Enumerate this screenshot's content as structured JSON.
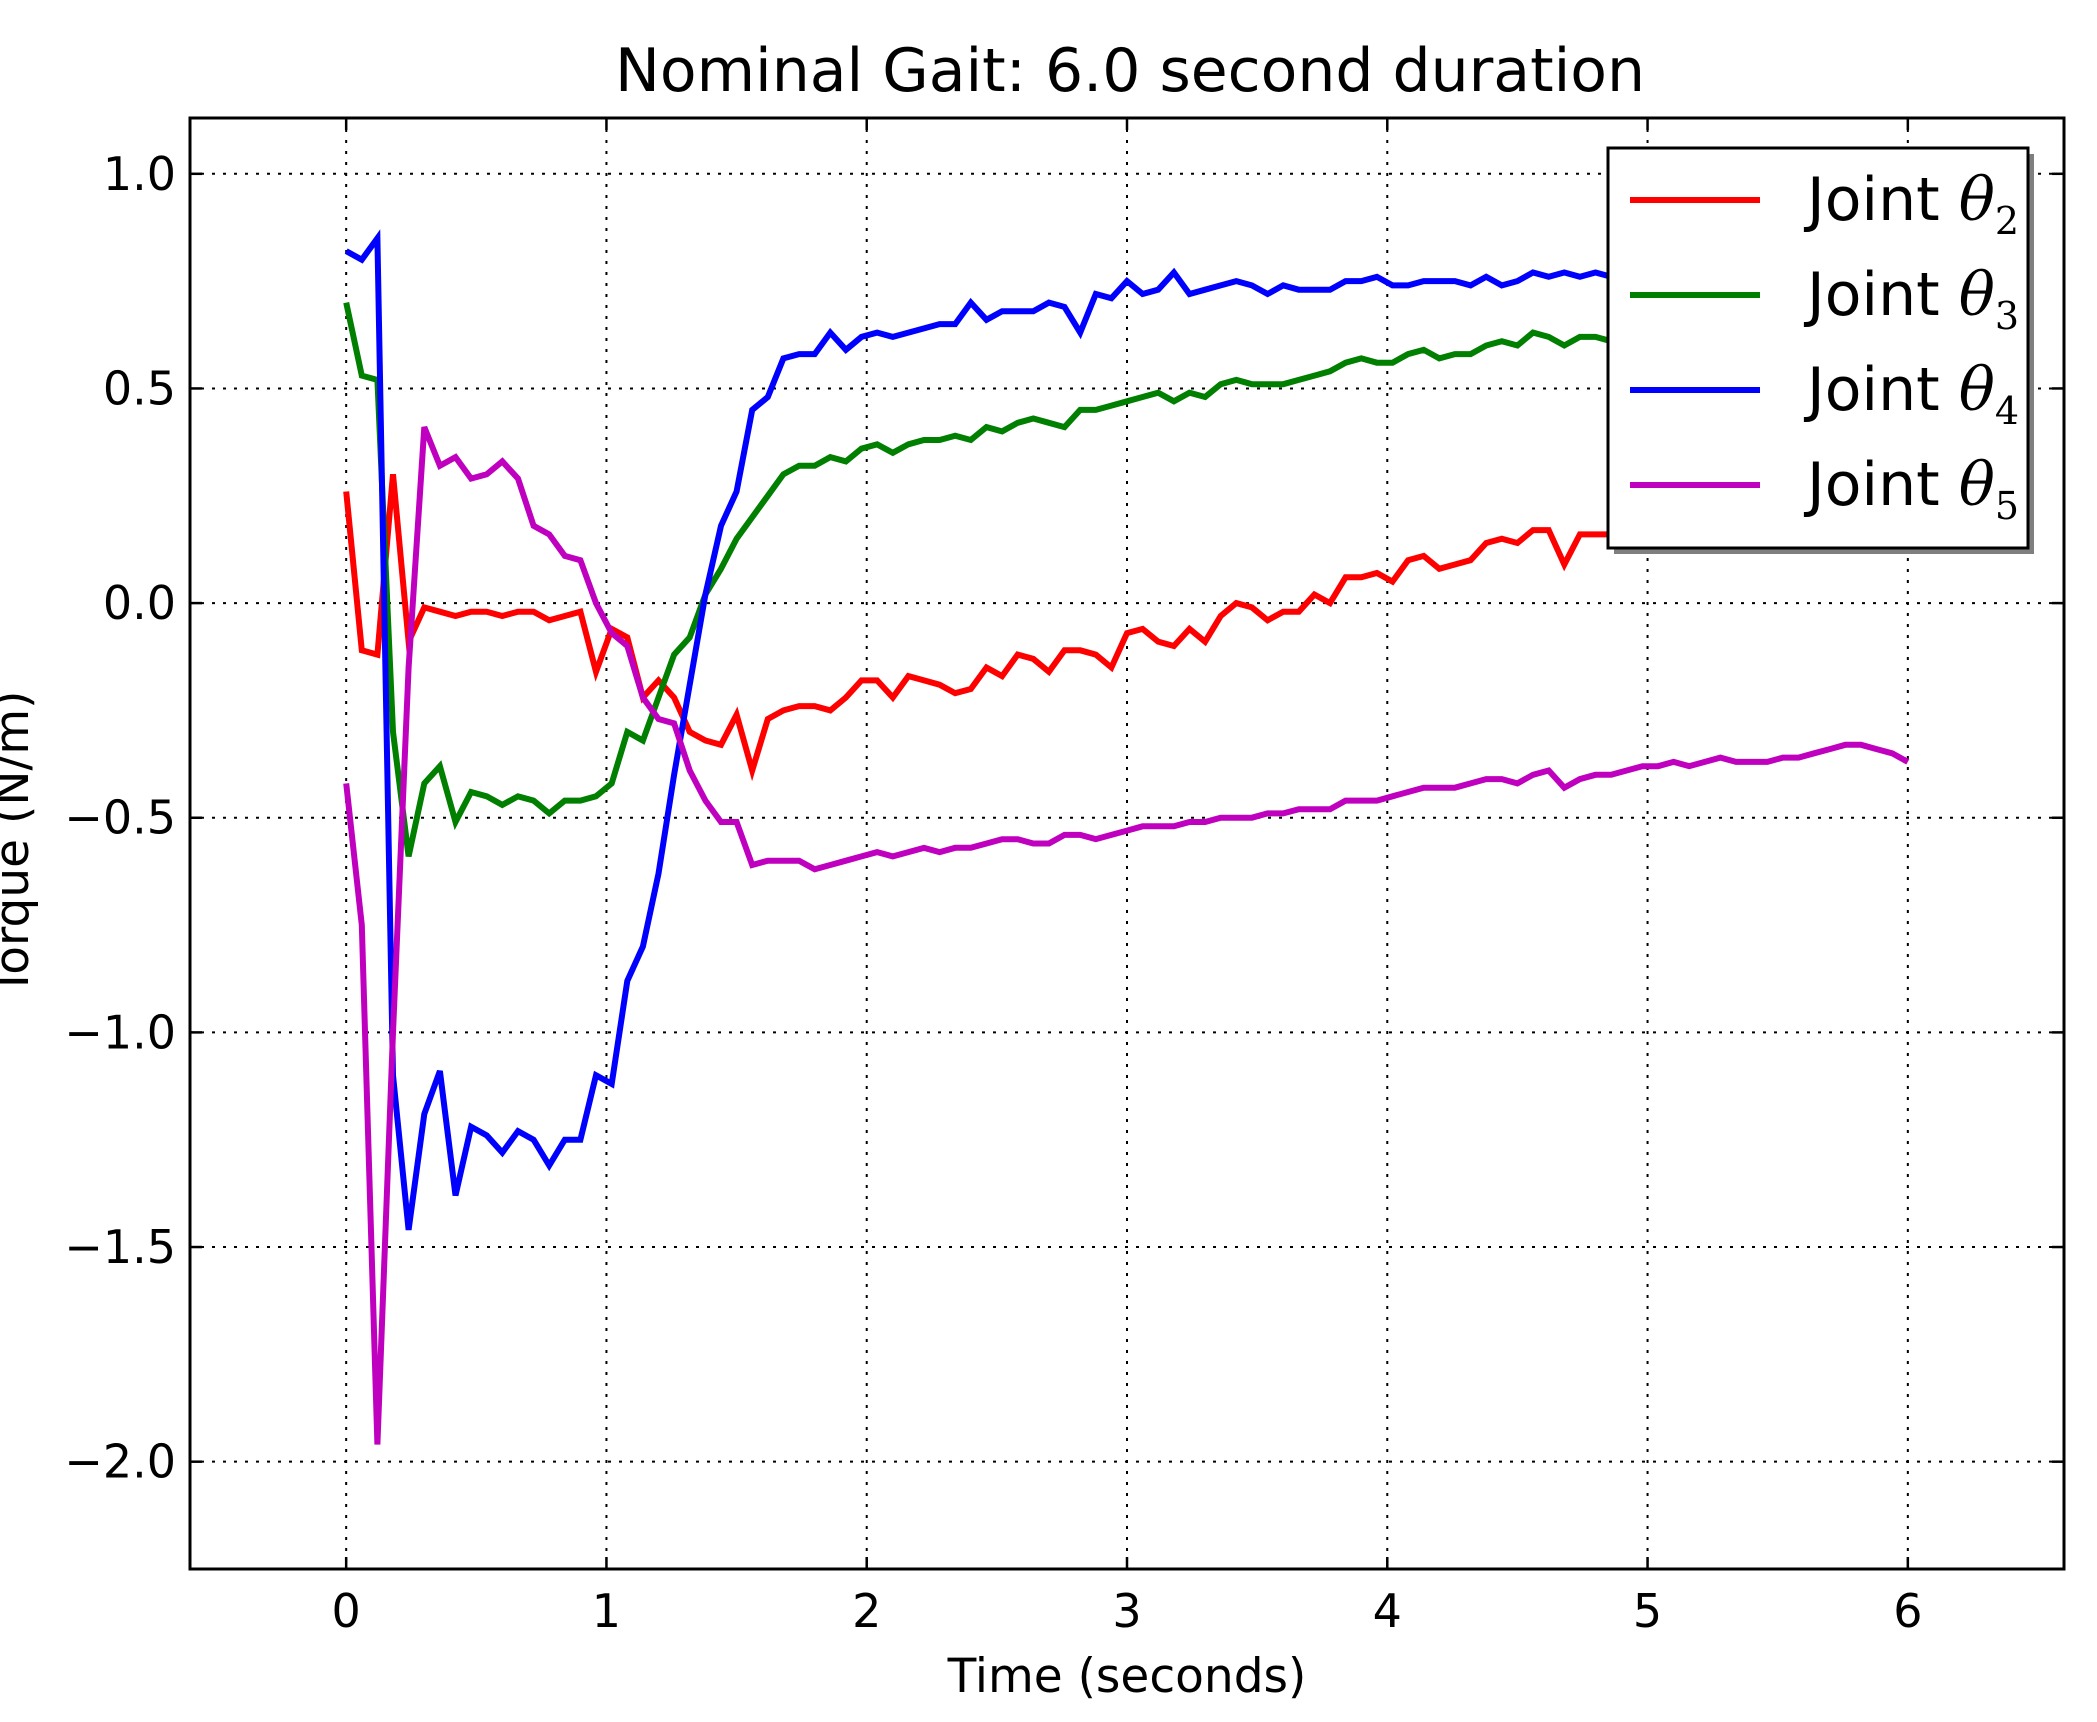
{
  "chart_data": {
    "type": "line",
    "title": "Nominal Gait: 6.0 second duration",
    "xlabel": "Time (seconds)",
    "ylabel": "Torque (N/m)",
    "xlim": [
      -0.6,
      6.6
    ],
    "ylim": [
      -2.25,
      1.13
    ],
    "xticks": [
      0,
      1,
      2,
      3,
      4,
      5,
      6
    ],
    "xtick_labels": [
      "0",
      "1",
      "2",
      "3",
      "4",
      "5",
      "6"
    ],
    "yticks": [
      1.0,
      0.5,
      0.0,
      -0.5,
      -1.0,
      -1.5,
      -2.0
    ],
    "ytick_labels": [
      "1.0",
      "0.5",
      "0.0",
      "−0.5",
      "−1.0",
      "−1.5",
      "−2.0"
    ],
    "grid": true,
    "legend_position": "upper-right",
    "x": [
      0.0,
      0.06,
      0.12,
      0.18,
      0.24,
      0.3,
      0.36,
      0.42,
      0.48,
      0.54,
      0.6,
      0.66,
      0.72,
      0.78,
      0.84,
      0.9,
      0.96,
      1.02,
      1.08,
      1.14,
      1.2,
      1.26,
      1.32,
      1.38,
      1.44,
      1.5,
      1.56,
      1.62,
      1.68,
      1.74,
      1.8,
      1.86,
      1.92,
      1.98,
      2.04,
      2.1,
      2.16,
      2.22,
      2.28,
      2.34,
      2.4,
      2.46,
      2.52,
      2.58,
      2.64,
      2.7,
      2.76,
      2.82,
      2.88,
      2.94,
      3.0,
      3.06,
      3.12,
      3.18,
      3.24,
      3.3,
      3.36,
      3.42,
      3.48,
      3.54,
      3.6,
      3.66,
      3.72,
      3.78,
      3.84,
      3.9,
      3.96,
      4.02,
      4.08,
      4.14,
      4.2,
      4.26,
      4.32,
      4.38,
      4.44,
      4.5,
      4.56,
      4.62,
      4.68,
      4.74,
      4.8,
      4.86,
      4.92,
      4.98,
      5.04,
      5.1,
      5.16,
      5.22,
      5.28,
      5.34,
      5.4,
      5.46,
      5.52,
      5.58,
      5.64,
      5.7,
      5.76,
      5.82,
      5.88,
      5.94,
      6.0
    ],
    "series": [
      {
        "name": "Joint θ2",
        "label_base": "Joint ",
        "label_symbol": "θ",
        "label_sub": "2",
        "color": "#ff0000",
        "values": [
          0.26,
          -0.11,
          -0.12,
          0.3,
          -0.09,
          -0.01,
          -0.02,
          -0.03,
          -0.02,
          -0.02,
          -0.03,
          -0.02,
          -0.02,
          -0.04,
          -0.03,
          -0.02,
          -0.16,
          -0.06,
          -0.08,
          -0.22,
          -0.18,
          -0.22,
          -0.3,
          -0.32,
          -0.33,
          -0.26,
          -0.39,
          -0.27,
          -0.25,
          -0.24,
          -0.24,
          -0.25,
          -0.22,
          -0.18,
          -0.18,
          -0.22,
          -0.17,
          -0.18,
          -0.19,
          -0.21,
          -0.2,
          -0.15,
          -0.17,
          -0.12,
          -0.13,
          -0.16,
          -0.11,
          -0.11,
          -0.12,
          -0.15,
          -0.07,
          -0.06,
          -0.09,
          -0.1,
          -0.06,
          -0.09,
          -0.03,
          0.0,
          -0.01,
          -0.04,
          -0.02,
          -0.02,
          0.02,
          0.0,
          0.06,
          0.06,
          0.07,
          0.05,
          0.1,
          0.11,
          0.08,
          0.09,
          0.1,
          0.14,
          0.15,
          0.14,
          0.17,
          0.17,
          0.09,
          0.16,
          0.16,
          0.16,
          0.17,
          0.17,
          0.18,
          0.19,
          0.2,
          0.2,
          0.21,
          0.22,
          0.22,
          0.23,
          0.23,
          0.24,
          0.24,
          0.25,
          0.25,
          0.25,
          0.26,
          0.26,
          0.26
        ]
      },
      {
        "name": "Joint θ3",
        "label_base": "Joint ",
        "label_symbol": "θ",
        "label_sub": "3",
        "color": "#007f00",
        "values": [
          0.7,
          0.53,
          0.52,
          -0.3,
          -0.59,
          -0.42,
          -0.38,
          -0.51,
          -0.44,
          -0.45,
          -0.47,
          -0.45,
          -0.46,
          -0.49,
          -0.46,
          -0.46,
          -0.45,
          -0.42,
          -0.3,
          -0.32,
          -0.22,
          -0.12,
          -0.08,
          0.02,
          0.08,
          0.15,
          0.2,
          0.25,
          0.3,
          0.32,
          0.32,
          0.34,
          0.33,
          0.36,
          0.37,
          0.35,
          0.37,
          0.38,
          0.38,
          0.39,
          0.38,
          0.41,
          0.4,
          0.42,
          0.43,
          0.42,
          0.41,
          0.45,
          0.45,
          0.46,
          0.47,
          0.48,
          0.49,
          0.47,
          0.49,
          0.48,
          0.51,
          0.52,
          0.51,
          0.51,
          0.51,
          0.52,
          0.53,
          0.54,
          0.56,
          0.57,
          0.56,
          0.56,
          0.58,
          0.59,
          0.57,
          0.58,
          0.58,
          0.6,
          0.61,
          0.6,
          0.63,
          0.62,
          0.6,
          0.62,
          0.62,
          0.61,
          0.6,
          0.61,
          0.61,
          0.6,
          0.6,
          0.61,
          0.61,
          0.6,
          0.61,
          0.61,
          0.62,
          0.61,
          0.62,
          0.62,
          0.62,
          0.62,
          0.62,
          0.62,
          0.62
        ]
      },
      {
        "name": "Joint θ4",
        "label_base": "Joint ",
        "label_symbol": "θ",
        "label_sub": "4",
        "color": "#0000ff",
        "values": [
          0.82,
          0.8,
          0.85,
          -1.1,
          -1.46,
          -1.19,
          -1.09,
          -1.38,
          -1.22,
          -1.24,
          -1.28,
          -1.23,
          -1.25,
          -1.31,
          -1.25,
          -1.25,
          -1.1,
          -1.12,
          -0.88,
          -0.8,
          -0.63,
          -0.4,
          -0.19,
          0.02,
          0.18,
          0.26,
          0.45,
          0.48,
          0.57,
          0.58,
          0.58,
          0.63,
          0.59,
          0.62,
          0.63,
          0.62,
          0.63,
          0.64,
          0.65,
          0.65,
          0.7,
          0.66,
          0.68,
          0.68,
          0.68,
          0.7,
          0.69,
          0.63,
          0.72,
          0.71,
          0.75,
          0.72,
          0.73,
          0.77,
          0.72,
          0.73,
          0.74,
          0.75,
          0.74,
          0.72,
          0.74,
          0.73,
          0.73,
          0.73,
          0.75,
          0.75,
          0.76,
          0.74,
          0.74,
          0.75,
          0.75,
          0.75,
          0.74,
          0.76,
          0.74,
          0.75,
          0.77,
          0.76,
          0.77,
          0.76,
          0.77,
          0.76,
          0.76,
          0.73,
          0.73,
          0.73,
          0.72,
          0.72,
          0.72,
          0.71,
          0.71,
          0.71,
          0.7,
          0.7,
          0.7,
          0.69,
          0.69,
          0.69,
          0.69,
          0.68,
          0.68
        ]
      },
      {
        "name": "Joint θ5",
        "label_base": "Joint ",
        "label_symbol": "θ",
        "label_sub": "5",
        "color": "#bf00bf",
        "values": [
          -0.42,
          -0.75,
          -1.96,
          -1.0,
          -0.15,
          0.41,
          0.32,
          0.34,
          0.29,
          0.3,
          0.33,
          0.29,
          0.18,
          0.16,
          0.11,
          0.1,
          0.0,
          -0.07,
          -0.1,
          -0.22,
          -0.27,
          -0.28,
          -0.39,
          -0.46,
          -0.51,
          -0.51,
          -0.61,
          -0.6,
          -0.6,
          -0.6,
          -0.62,
          -0.61,
          -0.6,
          -0.59,
          -0.58,
          -0.59,
          -0.58,
          -0.57,
          -0.58,
          -0.57,
          -0.57,
          -0.56,
          -0.55,
          -0.55,
          -0.56,
          -0.56,
          -0.54,
          -0.54,
          -0.55,
          -0.54,
          -0.53,
          -0.52,
          -0.52,
          -0.52,
          -0.51,
          -0.51,
          -0.5,
          -0.5,
          -0.5,
          -0.49,
          -0.49,
          -0.48,
          -0.48,
          -0.48,
          -0.46,
          -0.46,
          -0.46,
          -0.45,
          -0.44,
          -0.43,
          -0.43,
          -0.43,
          -0.42,
          -0.41,
          -0.41,
          -0.42,
          -0.4,
          -0.39,
          -0.43,
          -0.41,
          -0.4,
          -0.4,
          -0.39,
          -0.38,
          -0.38,
          -0.37,
          -0.38,
          -0.37,
          -0.36,
          -0.37,
          -0.37,
          -0.37,
          -0.36,
          -0.36,
          -0.35,
          -0.34,
          -0.33,
          -0.33,
          -0.34,
          -0.35,
          -0.37
        ]
      }
    ]
  }
}
